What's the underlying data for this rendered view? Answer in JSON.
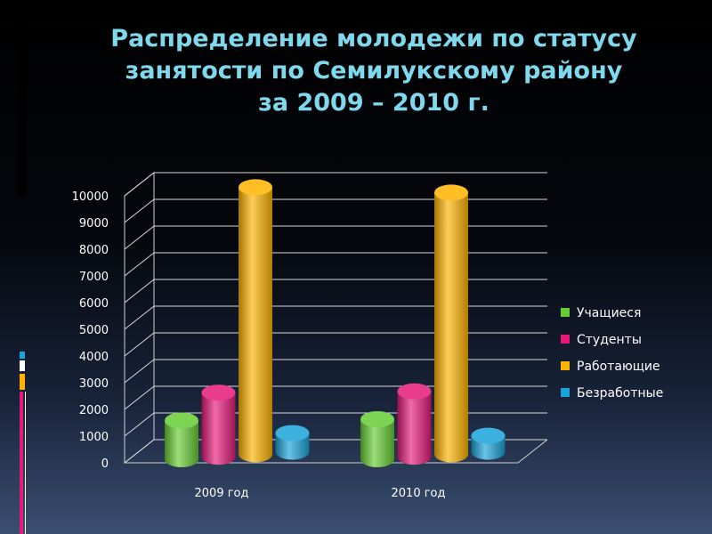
{
  "slide": {
    "title_lines": [
      "Распределение молодежи по статусу",
      "занятости по  Семилукскому району",
      "за 2009 – 2010 г."
    ]
  },
  "colors": {
    "title": "#7fd8ec",
    "series": [
      "#66cc33",
      "#e6197a",
      "#ffb300",
      "#1aa3d9"
    ]
  },
  "chart_data": {
    "type": "bar",
    "categories": [
      "2009 год",
      "2010 год"
    ],
    "series": [
      {
        "name": "Учащиеся",
        "values": [
          1450,
          1500
        ]
      },
      {
        "name": "Студенты",
        "values": [
          2400,
          2450
        ]
      },
      {
        "name": "Работающие",
        "values": [
          10000,
          9800
        ]
      },
      {
        "name": "Безработные",
        "values": [
          700,
          600
        ]
      }
    ],
    "ylim": [
      0,
      10000
    ],
    "yticks": [
      0,
      1000,
      2000,
      3000,
      4000,
      5000,
      6000,
      7000,
      8000,
      9000,
      10000
    ],
    "grid": true,
    "legend": "right",
    "three_d": true
  }
}
